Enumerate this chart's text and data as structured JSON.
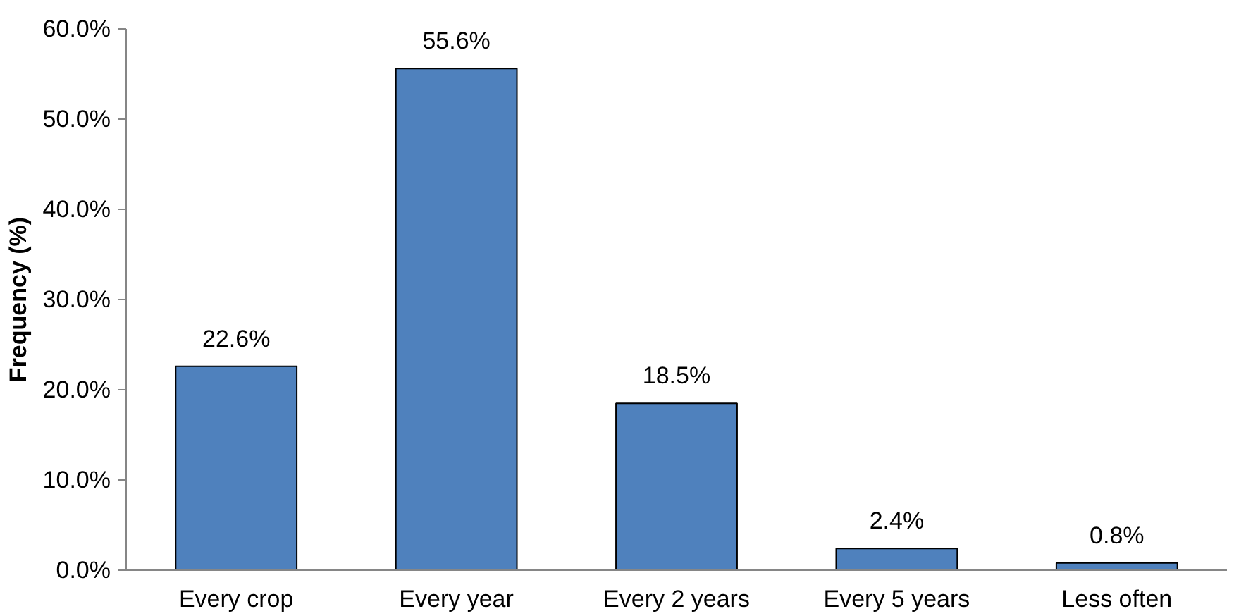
{
  "chart_data": {
    "type": "bar",
    "ylabel": "Frequency (%)",
    "categories": [
      "Every crop",
      "Every year",
      "Every 2 years",
      "Every 5 years",
      "Less often"
    ],
    "values": [
      22.6,
      55.6,
      18.5,
      2.4,
      0.8
    ],
    "value_labels": [
      "22.6%",
      "55.6%",
      "18.5%",
      "2.4%",
      "0.8%"
    ],
    "color": "#4f81bd",
    "ylim": [
      0,
      60
    ],
    "yticks": [
      {
        "value": 0,
        "label": "0.0%"
      },
      {
        "value": 10,
        "label": "10.0%"
      },
      {
        "value": 20,
        "label": "20.0%"
      },
      {
        "value": 30,
        "label": "30.0%"
      },
      {
        "value": 40,
        "label": "40.0%"
      },
      {
        "value": 50,
        "label": "50.0%"
      },
      {
        "value": 60,
        "label": "60.0%"
      }
    ],
    "grid": false
  }
}
